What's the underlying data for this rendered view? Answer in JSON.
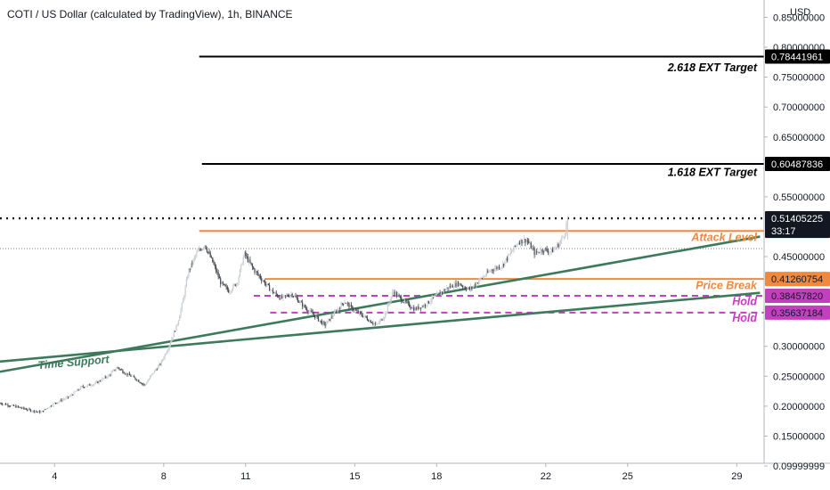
{
  "header": {
    "title": "COTI / US Dollar (calculated by TradingView), 1h, BINANCE",
    "currency": "USD"
  },
  "colors": {
    "background": "#ffffff",
    "up_candle": "#c9cdd4",
    "down_candle": "#45484e",
    "trendline": "#3d7a5b",
    "level_orange": "#f0883e",
    "level_black": "#000000",
    "hold_magenta": "#c43fbf",
    "last_price_badge": "#131722"
  },
  "chart_data": {
    "type": "candlestick",
    "x_axis": {
      "tick_labels": [
        "4",
        "8",
        "11",
        "15",
        "18",
        "22",
        "25",
        "29"
      ],
      "tick_days": [
        4,
        8,
        11,
        15,
        18,
        22,
        25,
        29
      ],
      "range_days": [
        2.0,
        30.0
      ]
    },
    "y_axis": {
      "scale": "linear",
      "range": [
        0.1045,
        0.879
      ],
      "tick_labels": [
        "0.85000000",
        "0.80000000",
        "0.75000000",
        "0.70000000",
        "0.65000000",
        "0.55000000",
        "0.45000000",
        "0.30000000",
        "0.25000000",
        "0.20000000",
        "0.15000000",
        "0.09999999"
      ],
      "tick_values": [
        0.85,
        0.8,
        0.75,
        0.7,
        0.65,
        0.55,
        0.45,
        0.3,
        0.25,
        0.2,
        0.15,
        0.09999999
      ]
    },
    "price_path": [
      [
        2.0,
        0.205
      ],
      [
        2.7,
        0.198
      ],
      [
        3.2,
        0.192
      ],
      [
        3.5,
        0.19
      ],
      [
        4.0,
        0.205
      ],
      [
        4.5,
        0.215
      ],
      [
        5.0,
        0.232
      ],
      [
        5.5,
        0.238
      ],
      [
        6.0,
        0.252
      ],
      [
        6.3,
        0.265
      ],
      [
        6.6,
        0.255
      ],
      [
        7.0,
        0.245
      ],
      [
        7.3,
        0.235
      ],
      [
        7.6,
        0.255
      ],
      [
        7.9,
        0.272
      ],
      [
        8.2,
        0.302
      ],
      [
        8.5,
        0.338
      ],
      [
        8.7,
        0.375
      ],
      [
        8.9,
        0.425
      ],
      [
        9.2,
        0.455
      ],
      [
        9.5,
        0.47
      ],
      [
        9.8,
        0.44
      ],
      [
        10.1,
        0.405
      ],
      [
        10.4,
        0.392
      ],
      [
        10.7,
        0.408
      ],
      [
        10.95,
        0.455
      ],
      [
        11.3,
        0.428
      ],
      [
        11.6,
        0.412
      ],
      [
        11.9,
        0.395
      ],
      [
        12.3,
        0.38
      ],
      [
        12.7,
        0.388
      ],
      [
        13.1,
        0.368
      ],
      [
        13.5,
        0.352
      ],
      [
        13.9,
        0.335
      ],
      [
        14.2,
        0.352
      ],
      [
        14.6,
        0.375
      ],
      [
        15.0,
        0.36
      ],
      [
        15.4,
        0.348
      ],
      [
        15.8,
        0.335
      ],
      [
        16.1,
        0.352
      ],
      [
        16.4,
        0.392
      ],
      [
        16.8,
        0.375
      ],
      [
        17.2,
        0.362
      ],
      [
        17.6,
        0.37
      ],
      [
        18.0,
        0.385
      ],
      [
        18.4,
        0.398
      ],
      [
        18.8,
        0.405
      ],
      [
        19.2,
        0.395
      ],
      [
        19.6,
        0.412
      ],
      [
        20.0,
        0.428
      ],
      [
        20.4,
        0.435
      ],
      [
        20.7,
        0.455
      ],
      [
        21.0,
        0.475
      ],
      [
        21.3,
        0.478
      ],
      [
        21.6,
        0.455
      ],
      [
        21.9,
        0.462
      ],
      [
        22.2,
        0.458
      ],
      [
        22.5,
        0.472
      ],
      [
        22.7,
        0.49
      ],
      [
        22.8,
        0.512
      ]
    ],
    "last_price": {
      "value": "0.51405225",
      "countdown": "33:17"
    },
    "lines": [
      {
        "name": "2.618 EXT Target",
        "value": 0.78441961,
        "label": "0.78441961",
        "color": "#000000",
        "style": "solid",
        "start_day": 9.3
      },
      {
        "name": "1.618 EXT Target",
        "value": 0.60487836,
        "label": "0.60487836",
        "color": "#000000",
        "style": "solid",
        "start_day": 9.4
      },
      {
        "name": "Attack Level",
        "value": 0.49286439,
        "label": "0.49286439",
        "color": "#f0883e",
        "style": "solid",
        "start_day": 9.3
      },
      {
        "name": "Price Break",
        "value": 0.41260754,
        "label": "0.41260754",
        "color": "#f0883e",
        "style": "solid",
        "start_day": 11.7
      },
      {
        "name": "Hold",
        "value": 0.3845782,
        "label": "0.38457820",
        "color": "#c43fbf",
        "style": "dashed",
        "start_day": 11.3
      },
      {
        "name": "Hold",
        "value": 0.35637184,
        "label": "0.35637184",
        "color": "#c43fbf",
        "style": "dashed",
        "start_day": 11.9
      }
    ],
    "trendlines": [
      {
        "name": "Time Support",
        "from": [
          2.0,
          0.2575
        ],
        "to": [
          29.85,
          0.4835
        ],
        "color": "#3d7a5b"
      },
      {
        "name": "",
        "from": [
          2.0,
          0.2745
        ],
        "to": [
          29.85,
          0.3895
        ],
        "color": "#3d7a5b"
      }
    ],
    "annotations": [
      {
        "text": "2.618 EXT Target",
        "anchor_value": 0.76,
        "color": "#000000"
      },
      {
        "text": "1.618 EXT Target",
        "anchor_value": 0.585,
        "color": "#000000"
      },
      {
        "text": "Attack Level",
        "anchor_value": 0.476,
        "color": "#f0883e"
      },
      {
        "text": "Price Break",
        "anchor_value": 0.396,
        "color": "#f0883e"
      },
      {
        "text": "Hold",
        "anchor_value": 0.369,
        "color": "#c43fbf"
      },
      {
        "text": "Hold",
        "anchor_value": 0.341,
        "color": "#c43fbf"
      },
      {
        "text": "Time Support",
        "anchor_value": 0.262,
        "color": "#3d7a5b"
      }
    ]
  }
}
